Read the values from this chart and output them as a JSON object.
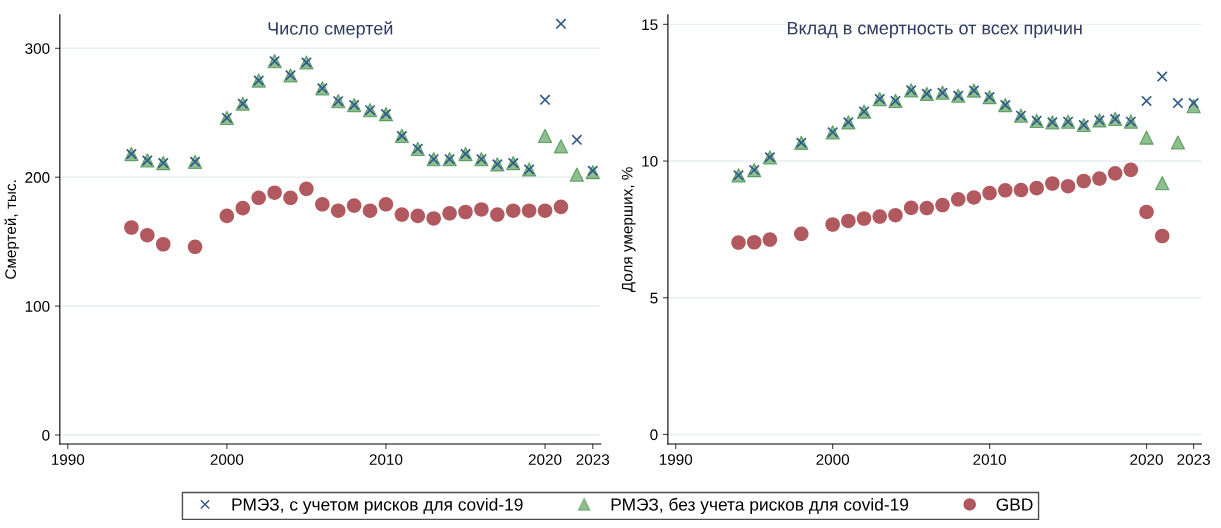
{
  "chart_data": [
    {
      "type": "scatter",
      "title": "Число смертей",
      "ylabel": "Смертей, тыс.",
      "x": [
        1994,
        1995,
        1996,
        1998,
        2000,
        2001,
        2002,
        2003,
        2004,
        2005,
        2006,
        2007,
        2008,
        2009,
        2010,
        2011,
        2012,
        2013,
        2014,
        2015,
        2016,
        2017,
        2018,
        2019,
        2020,
        2021,
        2022,
        2023
      ],
      "series": [
        {
          "name": "РМЭЗ, с учетом рисков для covid-19",
          "color": "#2f5a8a",
          "marker": "cross",
          "values": [
            218,
            213,
            211,
            212,
            246,
            257,
            275,
            290,
            279,
            289,
            269,
            259,
            256,
            252,
            249,
            232,
            222,
            214,
            214,
            218,
            214,
            210,
            211,
            206,
            260,
            319,
            229,
            205
          ]
        },
        {
          "name": "РМЭЗ, без учета рисков для covid-19",
          "color": "#6aaa6a",
          "marker": "triangle",
          "values": [
            218,
            213,
            211,
            212,
            246,
            257,
            275,
            290,
            279,
            289,
            269,
            259,
            256,
            252,
            249,
            232,
            222,
            214,
            214,
            218,
            214,
            210,
            211,
            206,
            232,
            224,
            202,
            204
          ]
        },
        {
          "name": "GBD",
          "color": "#a8474e",
          "marker": "circle",
          "values": [
            161,
            155,
            148,
            146,
            170,
            176,
            184,
            188,
            184,
            191,
            179,
            174,
            178,
            174,
            179,
            171,
            170,
            168,
            172,
            173,
            175,
            171,
            174,
            174,
            174,
            177,
            null,
            null
          ]
        }
      ],
      "xlim": [
        1989.5,
        2023.5
      ],
      "xticks": [
        1990,
        2000,
        2010,
        2020,
        2023
      ],
      "ylim": [
        -7,
        326
      ],
      "yticks": [
        0,
        100,
        200,
        300
      ],
      "grid": "y",
      "legend": "bottom"
    },
    {
      "type": "scatter",
      "title": "Вклад в смертность от всех причин",
      "ylabel": "Доля умерших, %",
      "x": [
        1994,
        1995,
        1996,
        1998,
        2000,
        2001,
        2002,
        2003,
        2004,
        2005,
        2006,
        2007,
        2008,
        2009,
        2010,
        2011,
        2012,
        2013,
        2014,
        2015,
        2016,
        2017,
        2018,
        2019,
        2020,
        2021,
        2022,
        2023
      ],
      "series": [
        {
          "name": "РМЭЗ, с учетом рисков для covid-19",
          "color": "#2f5a8a",
          "marker": "cross",
          "values": [
            9.48,
            9.67,
            10.14,
            10.67,
            11.05,
            11.42,
            11.81,
            12.27,
            12.2,
            12.59,
            12.46,
            12.5,
            12.39,
            12.58,
            12.34,
            12.05,
            11.66,
            11.47,
            11.42,
            11.44,
            11.32,
            11.49,
            11.54,
            11.44,
            12.2,
            13.09,
            12.12,
            12.12
          ]
        },
        {
          "name": "РМЭЗ, без учета рисков для covid-19",
          "color": "#6aaa6a",
          "marker": "triangle",
          "values": [
            9.48,
            9.67,
            10.14,
            10.67,
            11.05,
            11.42,
            11.81,
            12.27,
            12.2,
            12.59,
            12.46,
            12.5,
            12.39,
            12.58,
            12.34,
            12.05,
            11.66,
            11.47,
            11.42,
            11.44,
            11.32,
            11.49,
            11.54,
            11.44,
            10.86,
            9.19,
            10.68,
            12.01
          ]
        },
        {
          "name": "GBD",
          "color": "#a8474e",
          "marker": "circle",
          "values": [
            7.02,
            7.03,
            7.13,
            7.34,
            7.68,
            7.81,
            7.9,
            7.97,
            8.02,
            8.29,
            8.28,
            8.39,
            8.6,
            8.67,
            8.83,
            8.93,
            8.94,
            9.01,
            9.18,
            9.08,
            9.27,
            9.36,
            9.55,
            9.68,
            8.14,
            7.26,
            null,
            null
          ]
        }
      ],
      "xlim": [
        1989.5,
        2023.5
      ],
      "xticks": [
        1990,
        2000,
        2010,
        2020,
        2023
      ],
      "ylim": [
        -0.35,
        15.35
      ],
      "yticks": [
        0,
        5,
        10,
        15
      ],
      "grid": "y"
    }
  ]
}
